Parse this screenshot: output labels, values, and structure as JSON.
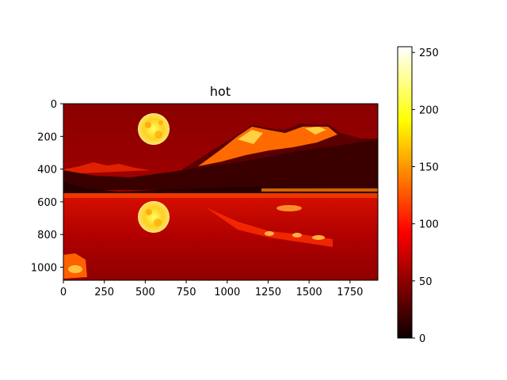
{
  "chart_data": {
    "type": "heatmap",
    "title": "hot",
    "colormap": "hot",
    "image_content": "night landscape: full moon above snowy mountains, reflected in a lake",
    "x_ticks": [
      "0",
      "250",
      "500",
      "750",
      "1000",
      "1250",
      "1500",
      "1750"
    ],
    "x_tick_values": [
      0,
      250,
      500,
      750,
      1000,
      1250,
      1500,
      1750
    ],
    "y_ticks": [
      "0",
      "200",
      "400",
      "600",
      "800",
      "1000"
    ],
    "y_tick_values": [
      0,
      200,
      400,
      600,
      800,
      1000
    ],
    "xlim": [
      0,
      1920
    ],
    "ylim": [
      1080,
      0
    ],
    "colorbar": {
      "ticks": [
        "0",
        "50",
        "100",
        "150",
        "200",
        "250"
      ],
      "tick_values": [
        0,
        50,
        100,
        150,
        200,
        250
      ],
      "range": [
        0,
        255
      ]
    }
  }
}
